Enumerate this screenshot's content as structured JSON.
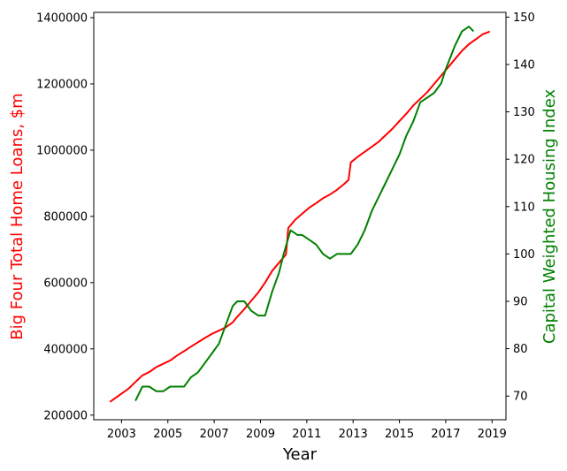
{
  "chart_data": {
    "type": "line",
    "xlabel": "Year",
    "ylabel_left": "Big Four Total Home Loans, $m",
    "ylabel_right": "Capital Weighted Housing Index",
    "colors": {
      "left": "#ff0000",
      "right": "#008000",
      "axis": "#000000"
    },
    "xlim": [
      2001.8,
      2019.6
    ],
    "ylim_left": [
      186000,
      1416000
    ],
    "ylim_right": [
      65,
      151
    ],
    "x_ticks": [
      2003,
      2005,
      2007,
      2009,
      2011,
      2013,
      2015,
      2017,
      2019
    ],
    "x_tick_labels": [
      "2003",
      "2005",
      "2007",
      "2009",
      "2011",
      "2013",
      "2015",
      "2017",
      "2019"
    ],
    "y_left_ticks": [
      200000,
      400000,
      600000,
      800000,
      1000000,
      1200000,
      1400000
    ],
    "y_left_tick_labels": [
      "200000",
      "400000",
      "600000",
      "800000",
      "1000000",
      "1200000",
      "1400000"
    ],
    "y_right_ticks": [
      70,
      80,
      90,
      100,
      110,
      120,
      130,
      140,
      150
    ],
    "y_right_tick_labels": [
      "70",
      "80",
      "90",
      "100",
      "110",
      "120",
      "130",
      "140",
      "150"
    ],
    "series": [
      {
        "axis": "left",
        "color": "#ff0000",
        "x": [
          2002.5,
          2003.0,
          2003.3,
          2003.6,
          2003.9,
          2004.2,
          2004.5,
          2004.8,
          2005.1,
          2005.4,
          2005.7,
          2006.0,
          2006.3,
          2006.6,
          2006.9,
          2007.2,
          2007.5,
          2007.8,
          2008.0,
          2008.3,
          2008.6,
          2008.9,
          2009.2,
          2009.5,
          2009.8,
          2010.1,
          2010.2,
          2010.5,
          2010.8,
          2011.1,
          2011.4,
          2011.7,
          2012.0,
          2012.3,
          2012.6,
          2012.8,
          2012.9,
          2013.2,
          2013.5,
          2013.8,
          2014.1,
          2014.4,
          2014.7,
          2015.0,
          2015.3,
          2015.6,
          2015.9,
          2016.2,
          2016.5,
          2016.8,
          2017.1,
          2017.4,
          2017.7,
          2018.0,
          2018.3,
          2018.6,
          2018.9
        ],
        "values": [
          240000,
          265000,
          280000,
          300000,
          320000,
          330000,
          345000,
          355000,
          365000,
          380000,
          393000,
          407000,
          420000,
          433000,
          445000,
          455000,
          465000,
          480000,
          497000,
          520000,
          545000,
          570000,
          600000,
          635000,
          660000,
          685000,
          765000,
          790000,
          808000,
          826000,
          840000,
          855000,
          866000,
          880000,
          897000,
          910000,
          963000,
          980000,
          995000,
          1010000,
          1025000,
          1045000,
          1065000,
          1088000,
          1110000,
          1135000,
          1155000,
          1175000,
          1200000,
          1225000,
          1250000,
          1275000,
          1300000,
          1320000,
          1335000,
          1350000,
          1358000
        ]
      },
      {
        "axis": "right",
        "color": "#008000",
        "x": [
          2003.6,
          2003.9,
          2004.2,
          2004.5,
          2004.8,
          2005.1,
          2005.4,
          2005.7,
          2006.0,
          2006.3,
          2006.6,
          2006.9,
          2007.2,
          2007.5,
          2007.8,
          2008.0,
          2008.3,
          2008.6,
          2008.9,
          2009.2,
          2009.5,
          2009.8,
          2010.0,
          2010.3,
          2010.6,
          2010.8,
          2011.1,
          2011.4,
          2011.7,
          2012.0,
          2012.3,
          2012.6,
          2012.9,
          2013.2,
          2013.5,
          2013.8,
          2014.1,
          2014.4,
          2014.7,
          2015.0,
          2015.3,
          2015.6,
          2015.9,
          2016.2,
          2016.5,
          2016.8,
          2017.0,
          2017.4,
          2017.7,
          2018.0,
          2018.2
        ],
        "values": [
          69,
          72,
          72,
          71,
          71,
          72,
          72,
          72,
          74,
          75,
          77,
          79,
          81,
          85,
          89,
          90,
          90,
          88,
          87,
          87,
          92,
          96,
          100,
          105,
          104,
          104,
          103,
          102,
          100,
          99,
          100,
          100,
          100,
          102,
          105,
          109,
          112,
          115,
          118,
          121,
          125,
          128,
          132,
          133,
          134,
          136,
          139,
          144,
          147,
          148,
          147
        ]
      }
    ]
  }
}
